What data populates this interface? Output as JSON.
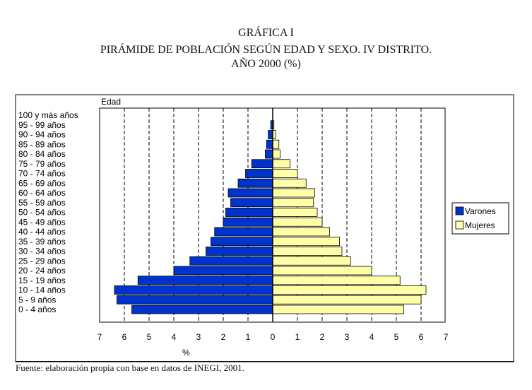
{
  "titles": {
    "line1": "GRÁFICA I",
    "line2": "PIRÁMIDE DE POBLACIÓN SEGÚN EDAD Y SEXO. IV DISTRITO.",
    "line3": "AÑO 2000 (%)"
  },
  "source": "Fuente: elaboración propia con base en datos de INEGI, 2001.",
  "chart_data": {
    "type": "bar",
    "orientation": "horizontal-pyramid",
    "ylabel": "Edad",
    "xlabel": "%",
    "xlim": [
      -7,
      7
    ],
    "x_ticks": [
      "7",
      "6",
      "5",
      "4",
      "3",
      "2",
      "1",
      "0",
      "1",
      "2",
      "3",
      "4",
      "5",
      "6",
      "7"
    ],
    "grid": "vertical-dashed",
    "legend_position": "right",
    "categories": [
      "0 - 4 años",
      "5 - 9 años",
      "10 - 14 años",
      "15 - 19 años",
      "20 - 24 años",
      "25 - 29 años",
      "30 - 34 años",
      "35 - 39 años",
      "40 - 44 años",
      "45 - 49 años",
      "50 - 54 años",
      "55 - 59 años",
      "60 - 64 años",
      "65 - 69 años",
      "70 - 74 años",
      "75 - 79 años",
      "80 - 84 años",
      "85 - 89 años",
      "90 - 94 años",
      "95 - 99 años",
      "100 y más años"
    ],
    "series": [
      {
        "name": "Varones",
        "color": "#0033cc",
        "values": [
          5.7,
          6.3,
          6.4,
          5.45,
          4.0,
          3.35,
          2.7,
          2.5,
          2.35,
          2.0,
          1.9,
          1.7,
          1.8,
          1.4,
          1.1,
          0.85,
          0.3,
          0.25,
          0.18,
          0.08,
          0.0
        ]
      },
      {
        "name": "Mujeres",
        "color": "#ffffa6",
        "values": [
          5.3,
          6.0,
          6.2,
          5.15,
          4.0,
          3.15,
          2.8,
          2.7,
          2.3,
          2.0,
          1.8,
          1.65,
          1.7,
          1.35,
          1.0,
          0.7,
          0.3,
          0.25,
          0.12,
          0.05,
          0.0
        ]
      }
    ]
  }
}
